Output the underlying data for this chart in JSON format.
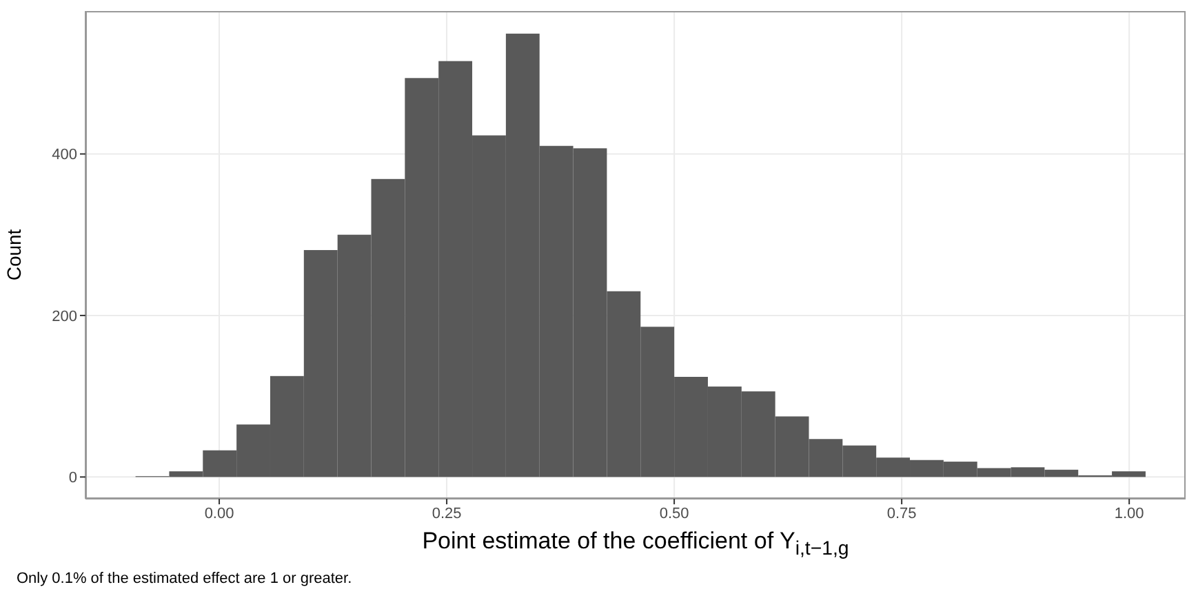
{
  "chart_data": {
    "type": "histogram",
    "xlabel": "Point estimate of the coefficient of Y$_{i,t−1,g}$",
    "ylabel": "Count",
    "annotations": [
      "Only 0.1% of the estimated effect are 1 or greater."
    ],
    "bins": [
      -0.092,
      -0.055,
      -0.018,
      0.019,
      0.056,
      0.093,
      0.13,
      0.167,
      0.204,
      0.241,
      0.278,
      0.315,
      0.352,
      0.389,
      0.426,
      0.463,
      0.5,
      0.537,
      0.574,
      0.611,
      0.648,
      0.685,
      0.722,
      0.759,
      0.796,
      0.833,
      0.87,
      0.907,
      0.944,
      0.981,
      1.018
    ],
    "values": [
      1,
      7,
      33,
      65,
      125,
      281,
      300,
      369,
      494,
      515,
      423,
      549,
      410,
      407,
      230,
      186,
      124,
      112,
      106,
      75,
      47,
      39,
      24,
      21,
      19,
      11,
      12,
      9,
      2,
      7
    ],
    "color": "#595959",
    "xlim": [
      -0.147,
      1.062
    ],
    "ylim": [
      -27,
      577
    ],
    "xticks": [
      {
        "value": 0,
        "label": "0.00"
      },
      {
        "value": 0.25,
        "label": "0.25"
      },
      {
        "value": 0.5,
        "label": "0.50"
      },
      {
        "value": 0.75,
        "label": "0.75"
      },
      {
        "value": 1,
        "label": "1.00"
      }
    ],
    "yticks": [
      0,
      200,
      400
    ],
    "grid": true
  }
}
